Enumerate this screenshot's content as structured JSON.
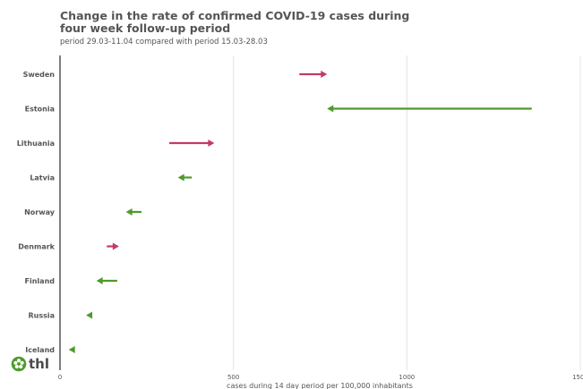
{
  "colors": {
    "increase": "#c2396d",
    "decrease": "#4f9a2b",
    "grid": "#e4e4e4",
    "axis": "#555555",
    "text": "#555555"
  },
  "logo": {
    "text": "thl",
    "icon": "thl-flower-icon"
  },
  "chart_data": {
    "type": "arrow",
    "title": "Change in the rate of confirmed COVID-19 cases during four week follow-up period",
    "subtitle": "period 29.03-11.04 compared with period 15.03-28.03",
    "xlabel": "cases during 14 day period per 100,000 inhabitants",
    "xlim": [
      0,
      1500
    ],
    "xticks": [
      0,
      500,
      1000,
      1500
    ],
    "xtick_labels": [
      "0",
      "500",
      "1000",
      "1500"
    ],
    "grid": true,
    "categories": [
      "Sweden",
      "Estonia",
      "Lithuania",
      "Latvia",
      "Norway",
      "Denmark",
      "Finland",
      "Russia",
      "Iceland"
    ],
    "series": [
      {
        "values_from": [
          690,
          1360,
          315,
          380,
          235,
          135,
          165,
          92,
          38
        ],
        "values_to": [
          770,
          770,
          445,
          340,
          190,
          170,
          105,
          75,
          25
        ]
      }
    ]
  }
}
